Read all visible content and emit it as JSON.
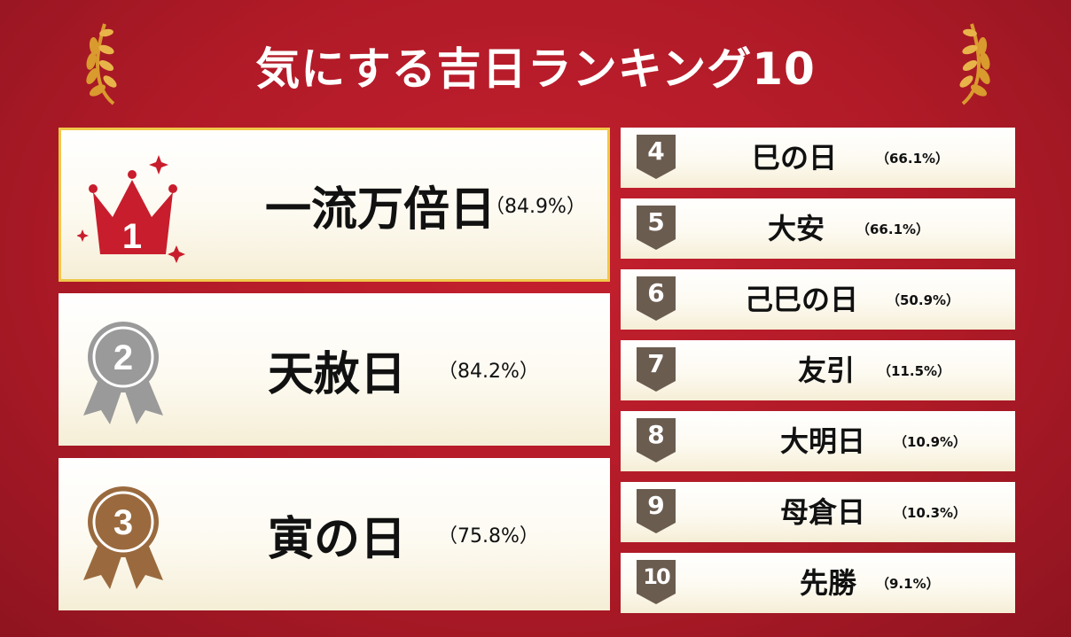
{
  "title": "気にする吉日ランキング10",
  "colors": {
    "background": "#b01a27",
    "gold": "#d99a2e",
    "crown": "#c81d2c",
    "silver": "#9a9a9a",
    "bronze": "#9a6a3e",
    "rank_badge": "#6b5c50"
  },
  "icons": {
    "laurel": "laurel-icon",
    "crown": "crown-icon",
    "silver_medal": "silver-medal-icon",
    "bronze_medal": "bronze-medal-icon"
  },
  "top3": [
    {
      "rank": "1",
      "name": "一流万倍日",
      "pct": "（84.9%）"
    },
    {
      "rank": "2",
      "name": "天赦日",
      "pct": "（84.2%）"
    },
    {
      "rank": "3",
      "name": "寅の日",
      "pct": "（75.8%）"
    }
  ],
  "rest": [
    {
      "rank": "4",
      "name": "巳の日",
      "pct": "（66.1%）"
    },
    {
      "rank": "5",
      "name": "大安",
      "pct": "（66.1%）"
    },
    {
      "rank": "6",
      "name": "己巳の日",
      "pct": "（50.9%）"
    },
    {
      "rank": "7",
      "name": "友引",
      "pct": "（11.5%）"
    },
    {
      "rank": "8",
      "name": "大明日",
      "pct": "（10.9%）"
    },
    {
      "rank": "9",
      "name": "母倉日",
      "pct": "（10.3%）"
    },
    {
      "rank": "10",
      "name": "先勝",
      "pct": "（9.1%）"
    }
  ]
}
